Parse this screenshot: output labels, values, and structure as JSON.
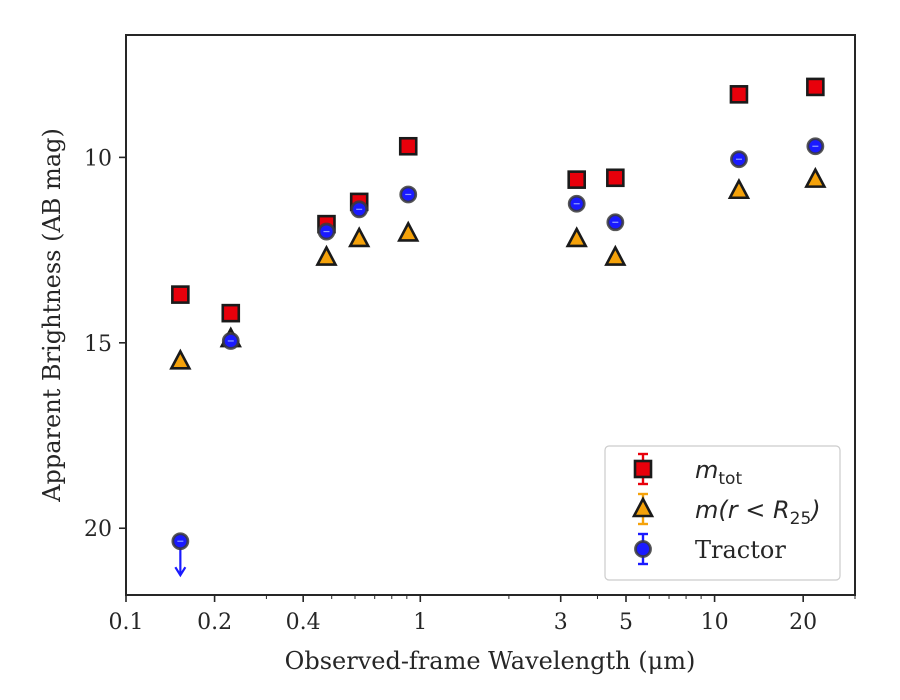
{
  "chart_data": {
    "type": "scatter",
    "title": "",
    "xlabel": "Observed-frame Wavelength (μm)",
    "ylabel": "Apparent Brightness (AB mag)",
    "xscale": "log",
    "xlim": [
      0.1,
      30
    ],
    "ylim": [
      21.8,
      6.7
    ],
    "y_inverted": true,
    "grid": false,
    "legend_position": "lower-right",
    "x_ticks": [
      {
        "value": 0.1,
        "label": "0.1"
      },
      {
        "value": 0.2,
        "label": "0.2"
      },
      {
        "value": 0.4,
        "label": "0.4"
      },
      {
        "value": 1,
        "label": "1"
      },
      {
        "value": 3,
        "label": "3"
      },
      {
        "value": 5,
        "label": "5"
      },
      {
        "value": 10,
        "label": "10"
      },
      {
        "value": 20,
        "label": "20"
      }
    ],
    "y_ticks": [
      {
        "value": 10,
        "label": "10"
      },
      {
        "value": 15,
        "label": "15"
      },
      {
        "value": 20,
        "label": "20"
      }
    ],
    "series": [
      {
        "name": "m_tot",
        "legend_main": "m",
        "legend_sub": "tot",
        "marker": "square",
        "color": "#e8000b",
        "x": [
          0.153,
          0.227,
          0.48,
          0.62,
          0.91,
          3.4,
          4.6,
          12.1,
          22.0
        ],
        "y": [
          13.7,
          14.2,
          11.8,
          11.2,
          9.7,
          10.6,
          10.55,
          8.3,
          8.1
        ]
      },
      {
        "name": "m(r<R25)",
        "legend_main": "m(r < R",
        "legend_sub": "25",
        "legend_tail": ")",
        "marker": "triangle",
        "color": "#f5a20a",
        "x": [
          0.153,
          0.227,
          0.48,
          0.62,
          0.91,
          3.4,
          4.6,
          12.1,
          22.0
        ],
        "y": [
          15.5,
          14.9,
          12.7,
          12.2,
          12.05,
          12.2,
          12.7,
          10.9,
          10.6
        ]
      },
      {
        "name": "Tractor",
        "marker": "circle",
        "color": "#1a1aff",
        "x": [
          0.153,
          0.227,
          0.48,
          0.62,
          0.91,
          3.4,
          4.6,
          12.1,
          22.0
        ],
        "y": [
          20.35,
          14.95,
          12.0,
          11.4,
          11.0,
          11.25,
          11.75,
          10.05,
          9.7
        ],
        "upper_limit": [
          true,
          false,
          false,
          false,
          false,
          false,
          false,
          false,
          false
        ]
      }
    ]
  }
}
